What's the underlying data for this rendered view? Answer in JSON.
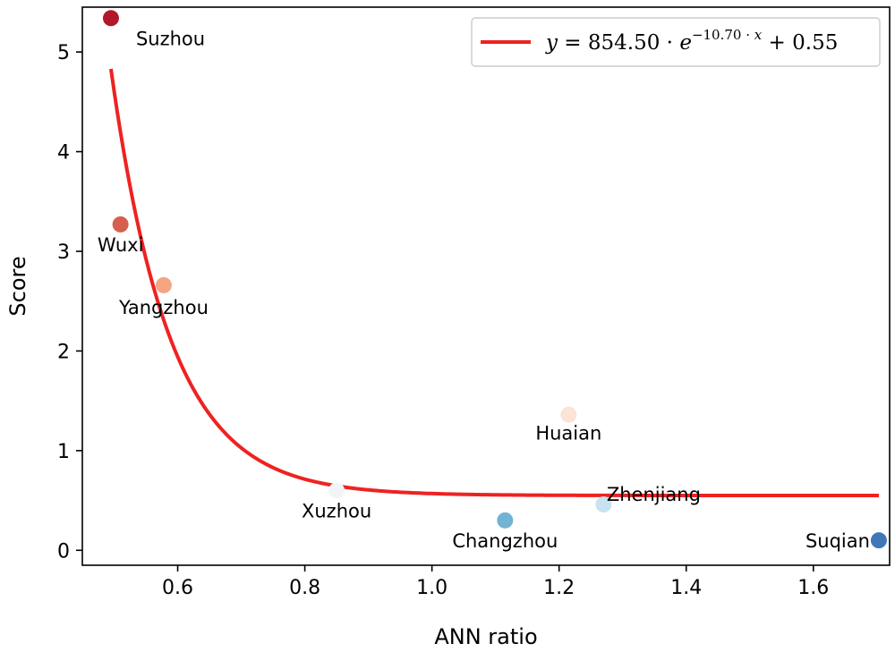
{
  "chart_data": {
    "type": "scatter",
    "xlabel": "ANN ratio",
    "ylabel": "Score",
    "xlim": [
      0.45,
      1.72
    ],
    "ylim": [
      -0.15,
      5.45
    ],
    "x_ticks": [
      0.6,
      0.8,
      1.0,
      1.2,
      1.4,
      1.6
    ],
    "x_tick_labels": [
      "0.6",
      "0.8",
      "1.0",
      "1.2",
      "1.4",
      "1.6"
    ],
    "y_ticks": [
      0,
      1,
      2,
      3,
      4,
      5
    ],
    "y_tick_labels": [
      "0",
      "1",
      "2",
      "3",
      "4",
      "5"
    ],
    "grid": false,
    "points": [
      {
        "name": "Suzhou",
        "x": 0.495,
        "y": 5.34,
        "color": "#b2182b"
      },
      {
        "name": "Wuxi",
        "x": 0.51,
        "y": 3.27,
        "color": "#d6604d"
      },
      {
        "name": "Yangzhou",
        "x": 0.578,
        "y": 2.66,
        "color": "#f4a582"
      },
      {
        "name": "Huaian",
        "x": 1.215,
        "y": 1.36,
        "color": "#fbe3d6"
      },
      {
        "name": "Xuzhou",
        "x": 0.85,
        "y": 0.6,
        "color": "#f2f5f7"
      },
      {
        "name": "Zhenjiang",
        "x": 1.27,
        "y": 0.46,
        "color": "#c6e3ef"
      },
      {
        "name": "Changzhou",
        "x": 1.115,
        "y": 0.3,
        "color": "#72b2d4"
      },
      {
        "name": "Suqian",
        "x": 1.703,
        "y": 0.1,
        "color": "#4077b7"
      }
    ],
    "fit": {
      "a": 854.5,
      "b": -10.7,
      "c": 0.55,
      "x_range": [
        0.495,
        1.703
      ],
      "color": "#ee2222",
      "legend_label": "y = 854.50 · e^(−10.70 · x) + 0.55"
    },
    "legend": {
      "location": "top-right"
    }
  }
}
